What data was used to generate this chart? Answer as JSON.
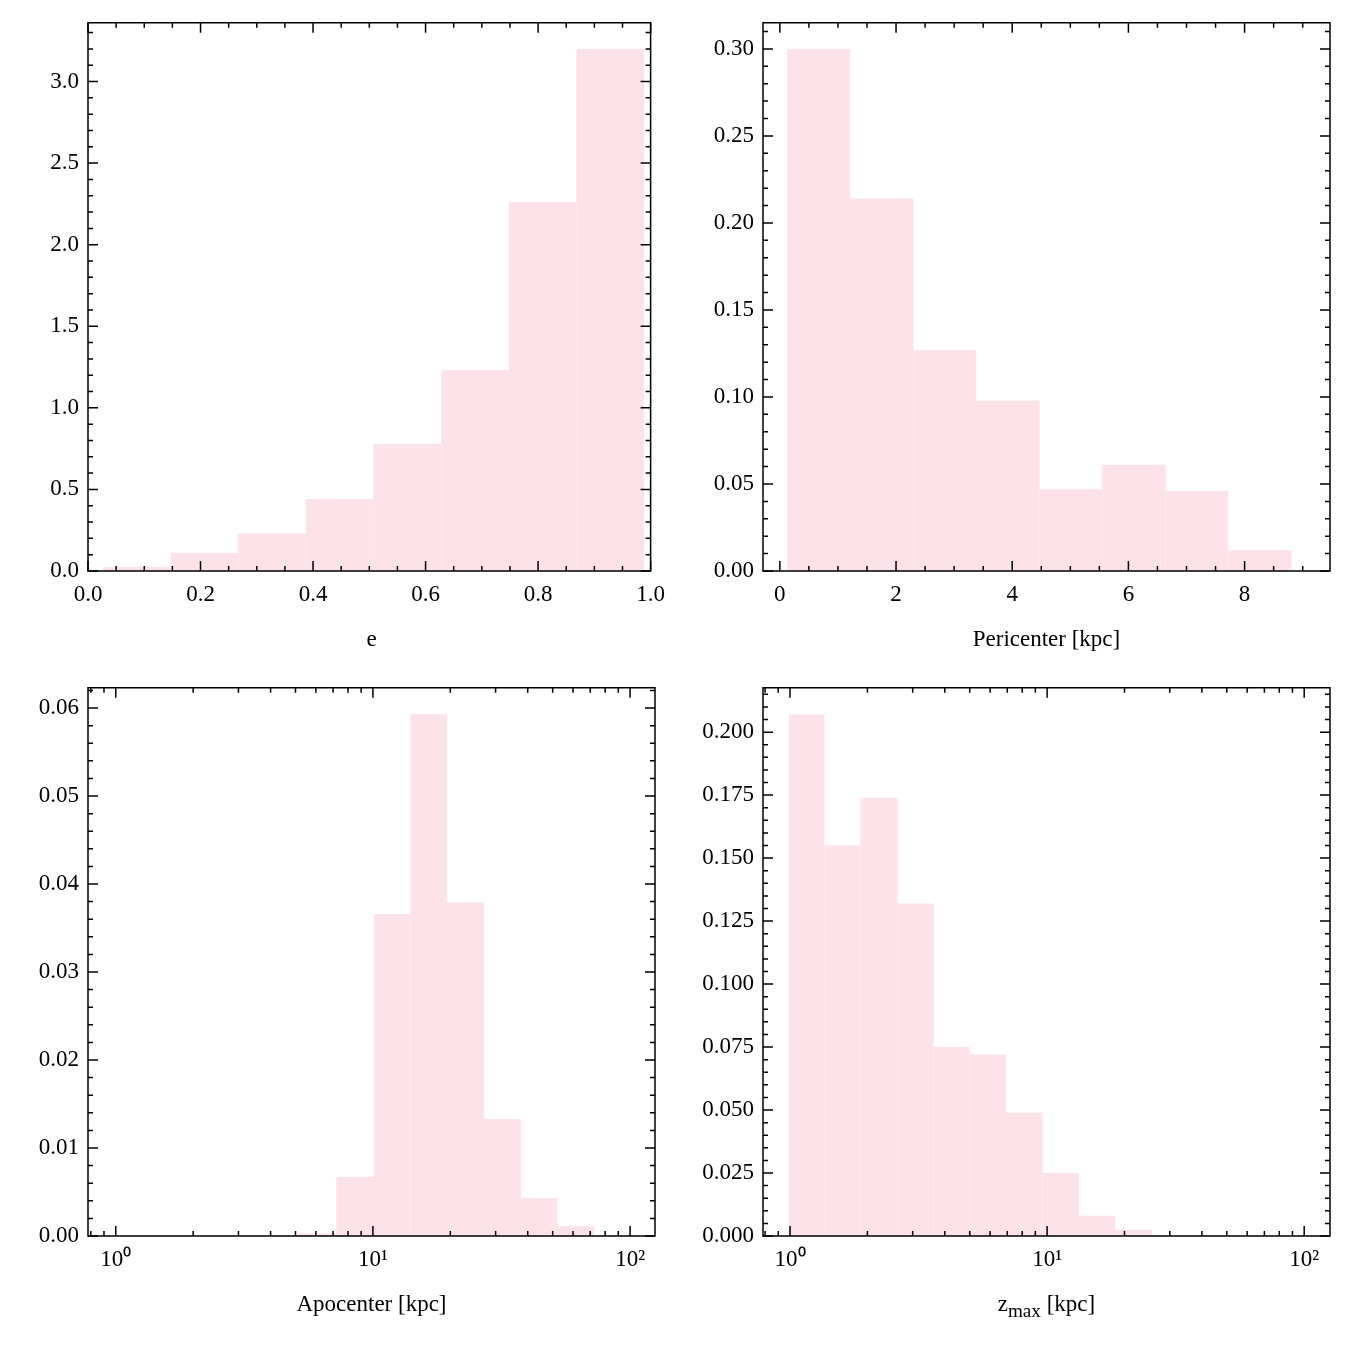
{
  "chart_data": [
    {
      "type": "histogram",
      "xlabel": "e",
      "color": "#fde3e9",
      "bins": [
        0.027,
        0.147,
        0.267,
        0.387,
        0.507,
        0.628,
        0.748,
        0.868,
        0.988
      ],
      "values": [
        0.025,
        0.11,
        0.23,
        0.44,
        0.78,
        1.23,
        2.26,
        3.2
      ],
      "xlim": [
        0,
        1
      ],
      "ylim": [
        0,
        3.36
      ],
      "xticks": [
        {
          "value": 0,
          "label": "0.0"
        },
        0.2,
        0.4,
        0.6,
        0.8,
        {
          "value": 1,
          "label": "1.0"
        }
      ],
      "yticks": [
        {
          "value": 0,
          "label": "0.0"
        },
        0.5,
        {
          "value": 1,
          "label": "1.0"
        },
        1.5,
        {
          "value": 2,
          "label": "2.0"
        },
        2.5,
        {
          "value": 3,
          "label": "3.0"
        }
      ]
    },
    {
      "type": "histogram",
      "xlabel": "Pericenter [kpc]",
      "color": "#fde3e9",
      "bins": [
        0.13,
        1.21,
        2.3,
        3.38,
        4.47,
        5.55,
        6.64,
        7.72,
        8.81
      ],
      "values": [
        0.3,
        0.214,
        0.127,
        0.098,
        0.047,
        0.061,
        0.046,
        0.012
      ],
      "xlim": [
        -0.29,
        9.47
      ],
      "ylim": [
        0,
        0.315
      ],
      "xticks": [
        0,
        2,
        4,
        6,
        8
      ],
      "yticks": [
        {
          "value": 0,
          "label": "0.00"
        },
        0.05,
        {
          "value": 0.1,
          "label": "0.10"
        },
        0.15,
        {
          "value": 0.2,
          "label": "0.20"
        },
        0.25,
        {
          "value": 0.3,
          "label": "0.30"
        }
      ]
    },
    {
      "type": "histogram",
      "xlabel": "Apocenter [kpc]",
      "log": "x",
      "color": "#fde3e9",
      "bins": [
        5.1,
        7.2,
        10.1,
        14.0,
        19.4,
        27.0,
        37.6,
        52.1,
        72.4
      ],
      "values": [
        0.0003,
        0.0067,
        0.0366,
        0.0593,
        0.0379,
        0.0133,
        0.0043,
        0.0011
      ],
      "xlim": [
        0.78,
        125
      ],
      "ylim": [
        0,
        0.0623
      ],
      "xticks": [
        {
          "value": 1,
          "label": "10⁰"
        },
        {
          "value": 10,
          "label": "10¹"
        },
        {
          "value": 100,
          "label": "10²"
        }
      ],
      "yticks": [
        {
          "value": 0,
          "label": "0.00"
        },
        0.01,
        0.02,
        0.03,
        0.04,
        0.05,
        0.06
      ]
    },
    {
      "type": "histogram",
      "xlabel": "z$_{max}$ [kpc]",
      "log": "x",
      "color": "#fde3e9",
      "bins": [
        0.99,
        1.36,
        1.88,
        2.62,
        3.62,
        5.0,
        6.92,
        9.6,
        13.3,
        18.4,
        25.6
      ],
      "values": [
        0.207,
        0.155,
        0.174,
        0.132,
        0.075,
        0.072,
        0.049,
        0.025,
        0.008,
        0.0025
      ],
      "xlim": [
        0.785,
        126
      ],
      "ylim": [
        0,
        0.2176
      ],
      "xticks": [
        {
          "value": 1,
          "label": "10⁰"
        },
        {
          "value": 10,
          "label": "10¹"
        },
        {
          "value": 100,
          "label": "10²"
        }
      ],
      "yticks": [
        {
          "value": 0,
          "label": "0.000"
        },
        0.025,
        {
          "value": 0.05,
          "label": "0.050"
        },
        0.075,
        {
          "value": 0.1,
          "label": "0.100"
        },
        0.125,
        {
          "value": 0.15,
          "label": "0.150"
        },
        0.175,
        {
          "value": 0.2,
          "label": "0.200"
        }
      ]
    }
  ]
}
